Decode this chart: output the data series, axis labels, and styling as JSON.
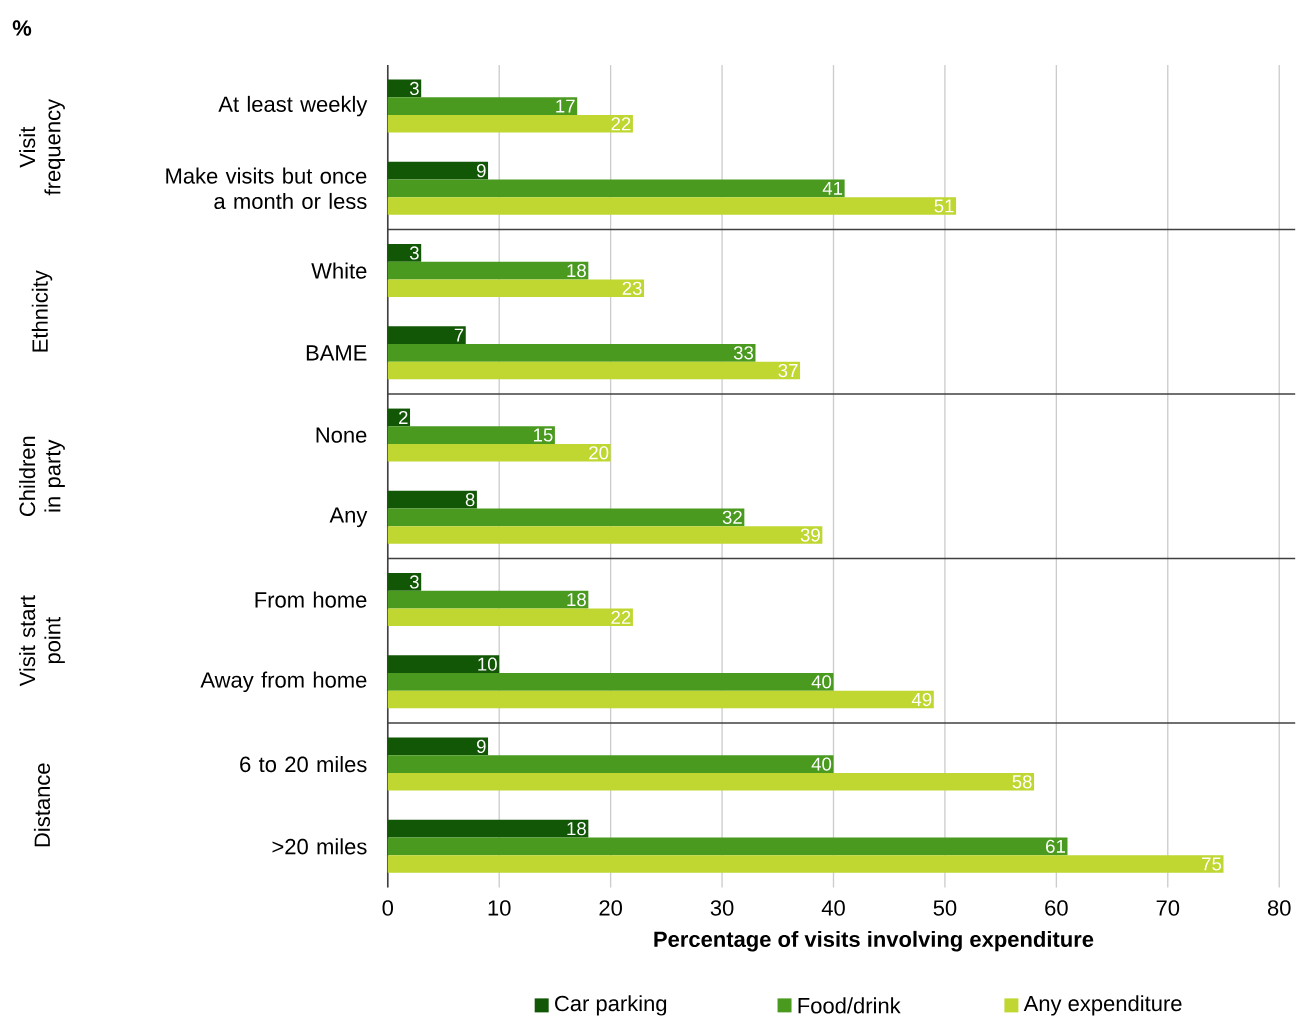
{
  "chart_data": {
    "type": "bar",
    "orientation": "horizontal",
    "xlabel": "Percentage of visits involving expenditure",
    "categories": [
      "At least weekly",
      "Make visits but once a month or less",
      "White",
      "BAME",
      "None",
      "Any",
      "From home",
      "Away from home",
      "6 to 20 miles",
      ">20 miles"
    ],
    "series": [
      {
        "name": "Car parking",
        "color": "#125706",
        "values": [
          3,
          9,
          3,
          7,
          2,
          8,
          3,
          10,
          9,
          18
        ]
      },
      {
        "name": "Food/drink",
        "color": "#4a9a20",
        "values": [
          17,
          41,
          18,
          33,
          15,
          32,
          18,
          40,
          40,
          61
        ]
      },
      {
        "name": "Any expenditure",
        "color": "#bfd730",
        "values": [
          22,
          51,
          23,
          37,
          20,
          39,
          22,
          49,
          58,
          75
        ]
      }
    ],
    "xlim": [
      0,
      80
    ],
    "xticks": [
      0,
      10,
      20,
      30,
      40,
      50,
      60,
      70,
      80
    ],
    "grid": "x",
    "legend": "bottom",
    "data_labels": true,
    "annotations": [
      "%",
      "Visit frequency",
      "Ethnicity",
      "Children in party",
      "Visit start point",
      "Distance"
    ]
  }
}
